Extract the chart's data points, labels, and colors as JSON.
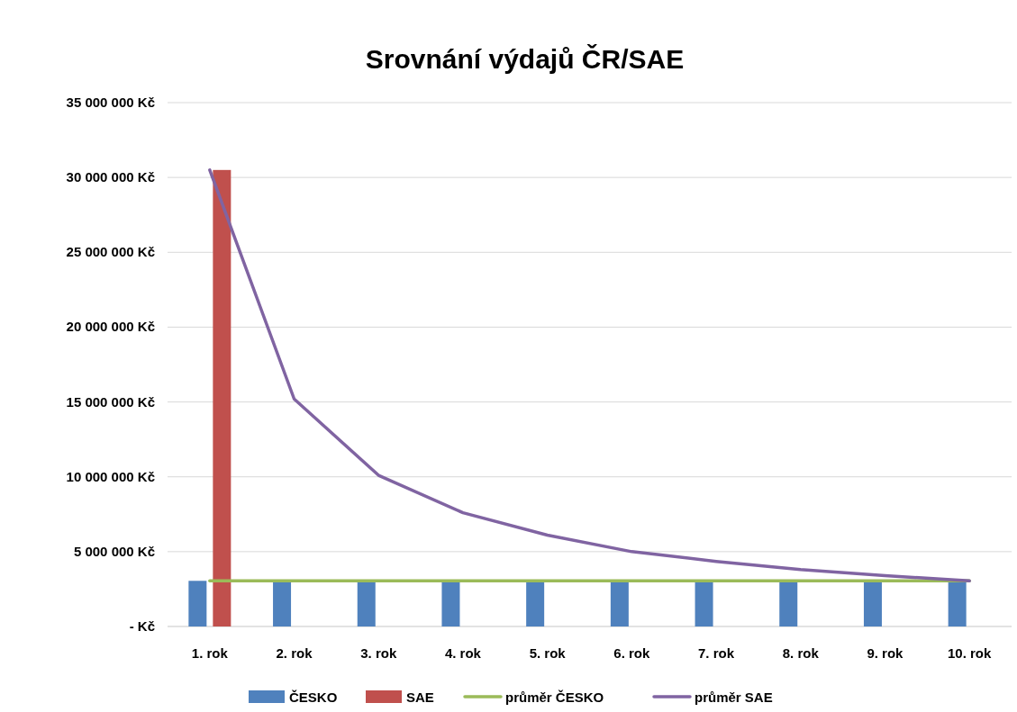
{
  "chart_data": {
    "type": "bar",
    "title": "Srovnání výdajů ČR/SAE",
    "categories": [
      "1. rok",
      "2. rok",
      "3. rok",
      "4. rok",
      "5. rok",
      "6. rok",
      "7. rok",
      "8. rok",
      "9. rok",
      "10. rok"
    ],
    "series": [
      {
        "name": "ČESKO",
        "color": "#4f81bd",
        "values": [
          3050000,
          3050000,
          3050000,
          3050000,
          3050000,
          3050000,
          3050000,
          3050000,
          3050000,
          3050000
        ]
      },
      {
        "name": "SAE",
        "color": "#c0504d",
        "values": [
          30500000,
          null,
          null,
          null,
          null,
          null,
          null,
          null,
          null,
          null
        ]
      },
      {
        "name": "průměr ČESKO",
        "type": "line",
        "color": "#9bbb59",
        "values": [
          3050000,
          3050000,
          3050000,
          3050000,
          3050000,
          3050000,
          3050000,
          3050000,
          3050000,
          3050000
        ]
      },
      {
        "name": "průměr SAE",
        "type": "line",
        "color": "#8064a2",
        "values": [
          30500000,
          15200000,
          10100000,
          7600000,
          6100000,
          5000000,
          4350000,
          3800000,
          3400000,
          3050000
        ]
      }
    ],
    "ylim": [
      0,
      35000000
    ],
    "yticks": [
      {
        "value": 0,
        "label": "-   Kč"
      },
      {
        "value": 5000000,
        "label": "5 000 000 Kč"
      },
      {
        "value": 10000000,
        "label": "10 000 000 Kč"
      },
      {
        "value": 15000000,
        "label": "15 000 000 Kč"
      },
      {
        "value": 20000000,
        "label": "20 000 000 Kč"
      },
      {
        "value": 25000000,
        "label": "25 000 000 Kč"
      },
      {
        "value": 30000000,
        "label": "30 000 000 Kč"
      },
      {
        "value": 35000000,
        "label": "35 000 000 Kč"
      }
    ],
    "grid": "y",
    "legend": "bottom",
    "line_style": "solid",
    "marker": "none"
  }
}
